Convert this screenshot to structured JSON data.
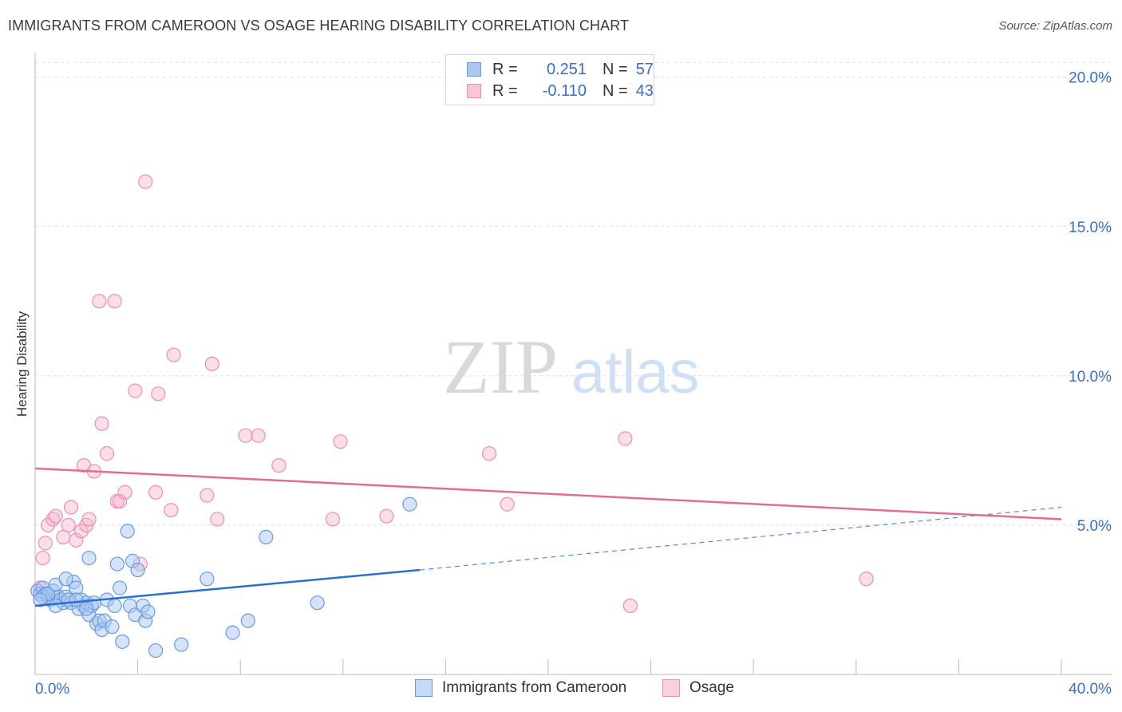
{
  "title": "IMMIGRANTS FROM CAMEROON VS OSAGE HEARING DISABILITY CORRELATION CHART",
  "source": "Source: ZipAtlas.com",
  "watermark": {
    "zip": "ZIP",
    "atlas": "atlas"
  },
  "legend": {
    "series1": {
      "r_label": "R =",
      "r_value": "0.251",
      "n_label": "N =",
      "n_value": "57"
    },
    "series2": {
      "r_label": "R =",
      "r_value": "-0.110",
      "n_label": "N =",
      "n_value": "43"
    }
  },
  "colors": {
    "blue_fill": "#a9c8f0",
    "blue_stroke": "#6a9be0",
    "blue_line": "#2a6fd1",
    "pink_fill": "#f7b9cc",
    "pink_stroke": "#ee8fae",
    "pink_line": "#e46b93",
    "axis_text": "#3b6fc4"
  },
  "chart_data": {
    "type": "scatter",
    "title": "IMMIGRANTS FROM CAMEROON VS OSAGE HEARING DISABILITY CORRELATION CHART",
    "xlabel": "",
    "ylabel": "Hearing Disability",
    "xlim": [
      0,
      40
    ],
    "ylim": [
      0,
      20.5
    ],
    "x_tick_labels": [
      "0.0%",
      "40.0%"
    ],
    "y_ticks": [
      5,
      10,
      15,
      20
    ],
    "y_tick_labels": [
      "5.0%",
      "10.0%",
      "15.0%",
      "20.0%"
    ],
    "legend_position": "top-center",
    "series": [
      {
        "name": "Immigrants from Cameroon",
        "color": "blue",
        "trend": {
          "x0": 0,
          "y0": 2.3,
          "x1": 15,
          "y1": 3.5,
          "dash_to_x": 40,
          "dash_to_y": 5.6
        },
        "points": [
          [
            0.1,
            2.8
          ],
          [
            0.2,
            2.7
          ],
          [
            0.3,
            2.9
          ],
          [
            0.4,
            2.7
          ],
          [
            0.5,
            2.6
          ],
          [
            0.6,
            2.5
          ],
          [
            0.7,
            2.8
          ],
          [
            0.8,
            3.0
          ],
          [
            0.9,
            2.6
          ],
          [
            1.0,
            2.5
          ],
          [
            1.1,
            2.4
          ],
          [
            1.2,
            2.6
          ],
          [
            1.4,
            2.4
          ],
          [
            1.5,
            3.1
          ],
          [
            1.6,
            2.9
          ],
          [
            1.7,
            2.2
          ],
          [
            1.8,
            2.5
          ],
          [
            1.9,
            2.3
          ],
          [
            2.0,
            2.4
          ],
          [
            2.1,
            2.0
          ],
          [
            2.2,
            2.3
          ],
          [
            2.3,
            2.4
          ],
          [
            2.4,
            1.7
          ],
          [
            2.5,
            1.8
          ],
          [
            2.6,
            1.5
          ],
          [
            2.7,
            1.8
          ],
          [
            2.8,
            2.5
          ],
          [
            3.0,
            1.6
          ],
          [
            3.1,
            2.3
          ],
          [
            3.2,
            3.7
          ],
          [
            3.3,
            2.9
          ],
          [
            3.4,
            1.1
          ],
          [
            3.6,
            4.8
          ],
          [
            3.7,
            2.3
          ],
          [
            3.8,
            3.8
          ],
          [
            3.9,
            2.0
          ],
          [
            4.0,
            3.5
          ],
          [
            4.2,
            2.3
          ],
          [
            4.3,
            1.8
          ],
          [
            4.4,
            2.1
          ],
          [
            4.7,
            0.8
          ],
          [
            5.7,
            1.0
          ],
          [
            6.7,
            3.2
          ],
          [
            7.7,
            1.4
          ],
          [
            8.3,
            1.8
          ],
          [
            9.0,
            4.6
          ],
          [
            11.0,
            2.4
          ],
          [
            14.6,
            5.7
          ],
          [
            1.2,
            3.2
          ],
          [
            2.1,
            3.9
          ],
          [
            0.3,
            2.6
          ],
          [
            0.5,
            2.7
          ],
          [
            1.3,
            2.5
          ],
          [
            2.0,
            2.2
          ],
          [
            0.2,
            2.5
          ],
          [
            0.8,
            2.3
          ],
          [
            1.6,
            2.5
          ]
        ]
      },
      {
        "name": "Osage",
        "color": "pink",
        "trend": {
          "x0": 0,
          "y0": 6.9,
          "x1": 40,
          "y1": 5.2
        },
        "points": [
          [
            0.3,
            3.9
          ],
          [
            0.4,
            4.4
          ],
          [
            0.5,
            5.0
          ],
          [
            0.7,
            5.2
          ],
          [
            0.8,
            5.3
          ],
          [
            1.1,
            4.6
          ],
          [
            1.3,
            5.0
          ],
          [
            1.4,
            5.6
          ],
          [
            1.6,
            4.5
          ],
          [
            1.8,
            4.8
          ],
          [
            1.9,
            7.0
          ],
          [
            2.0,
            5.0
          ],
          [
            2.1,
            5.2
          ],
          [
            2.3,
            6.8
          ],
          [
            2.5,
            12.5
          ],
          [
            2.6,
            8.4
          ],
          [
            2.8,
            7.4
          ],
          [
            3.1,
            12.5
          ],
          [
            3.2,
            5.8
          ],
          [
            3.3,
            5.8
          ],
          [
            3.5,
            6.1
          ],
          [
            3.9,
            9.5
          ],
          [
            4.1,
            3.7
          ],
          [
            4.3,
            16.5
          ],
          [
            4.7,
            6.1
          ],
          [
            4.8,
            9.4
          ],
          [
            5.3,
            5.5
          ],
          [
            5.4,
            10.7
          ],
          [
            6.7,
            6.0
          ],
          [
            6.9,
            10.4
          ],
          [
            7.1,
            5.2
          ],
          [
            8.2,
            8.0
          ],
          [
            8.7,
            8.0
          ],
          [
            9.5,
            7.0
          ],
          [
            11.6,
            5.2
          ],
          [
            11.9,
            7.8
          ],
          [
            13.7,
            5.3
          ],
          [
            17.7,
            7.4
          ],
          [
            18.4,
            5.7
          ],
          [
            23.0,
            7.9
          ],
          [
            23.2,
            2.3
          ],
          [
            32.4,
            3.2
          ],
          [
            0.2,
            2.9
          ]
        ]
      }
    ]
  },
  "bottom_legend": {
    "series1": "Immigrants from Cameroon",
    "series2": "Osage"
  }
}
